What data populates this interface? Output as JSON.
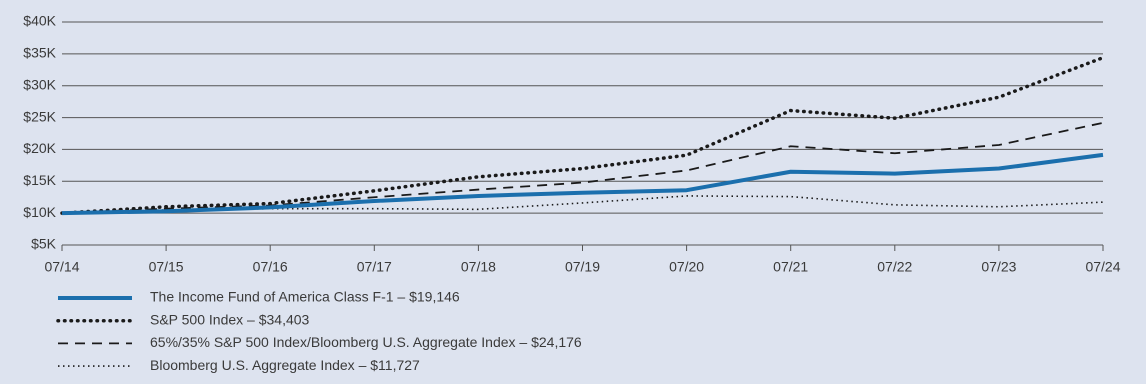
{
  "chart_data": {
    "type": "line",
    "categories": [
      "07/14",
      "07/15",
      "07/16",
      "07/17",
      "07/18",
      "07/19",
      "07/20",
      "07/21",
      "07/22",
      "07/23",
      "07/24"
    ],
    "ylim": [
      5000,
      40000
    ],
    "yticks": [
      {
        "value": 5000,
        "label": "$5K"
      },
      {
        "value": 10000,
        "label": "$10K"
      },
      {
        "value": 15000,
        "label": "$15K"
      },
      {
        "value": 20000,
        "label": "$20K"
      },
      {
        "value": 25000,
        "label": "$25K"
      },
      {
        "value": 30000,
        "label": "$30K"
      },
      {
        "value": 35000,
        "label": "$35K"
      },
      {
        "value": 40000,
        "label": "$40K"
      }
    ],
    "grid": true,
    "series": [
      {
        "name": "The Income Fund of America Class F-1 – $19,146",
        "color": "#1b6fad",
        "style": "solid",
        "values": [
          10000,
          10300,
          10900,
          11900,
          12700,
          13200,
          13600,
          16500,
          16200,
          17000,
          19146
        ]
      },
      {
        "name": "S&P 500 Index – $34,403",
        "color": "#1a1a1a",
        "style": "dotted",
        "values": [
          10000,
          11000,
          11500,
          13500,
          15700,
          17000,
          19100,
          26100,
          24900,
          28200,
          34403
        ]
      },
      {
        "name": "65%/35% S&P 500 Index/Bloomberg U.S. Aggregate Index – $24,176",
        "color": "#1a1a1a",
        "style": "dashed",
        "values": [
          10000,
          10700,
          11200,
          12500,
          13700,
          14800,
          16700,
          20500,
          19400,
          20700,
          24176
        ]
      },
      {
        "name": "Bloomberg U.S. Aggregate Index – $11,727",
        "color": "#1a1a1a",
        "style": "dotted-thin",
        "values": [
          10000,
          10500,
          10700,
          10700,
          10600,
          11600,
          12700,
          12600,
          11300,
          11000,
          11727
        ]
      }
    ]
  }
}
